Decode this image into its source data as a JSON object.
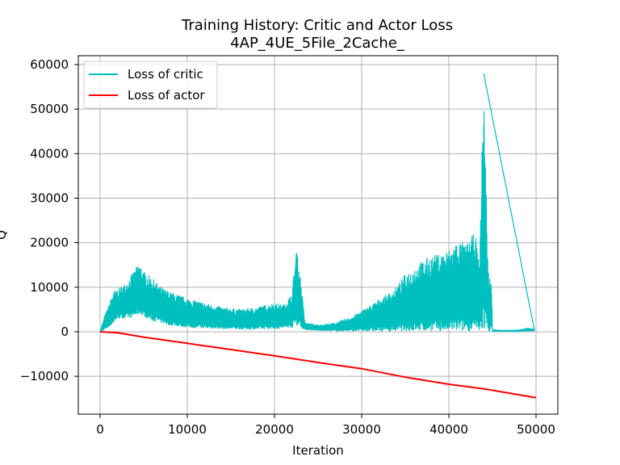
{
  "chart_data": {
    "type": "line",
    "title": "Training History: Critic and Actor Loss",
    "subtitle": "4AP_4UE_5File_2Cache_",
    "xlabel": "Iteration",
    "ylabel": "Q",
    "xlim": [
      -2500,
      52500
    ],
    "ylim": [
      -18500,
      62000
    ],
    "xticks": [
      0,
      10000,
      20000,
      30000,
      40000,
      50000
    ],
    "yticks": [
      -10000,
      0,
      10000,
      20000,
      30000,
      40000,
      50000,
      60000
    ],
    "grid": true,
    "legend_position": "top-left",
    "series": [
      {
        "name": "Loss of critic",
        "color": "#00bfbf",
        "envelope": {
          "x": [
            0,
            500,
            1000,
            1500,
            2000,
            3000,
            4000,
            4500,
            5000,
            6000,
            7000,
            8000,
            10000,
            12000,
            14000,
            16000,
            18000,
            20000,
            21000,
            22000,
            22500,
            23000,
            23500,
            25000,
            27000,
            29000,
            31000,
            33000,
            34000,
            35000,
            36000,
            37000,
            38000,
            39000,
            40000,
            41000,
            42000,
            43000,
            43500,
            44000,
            44500,
            44900,
            45000,
            46000,
            48000,
            49000,
            49800
          ],
          "upper": [
            100,
            3500,
            6000,
            9000,
            9500,
            11000,
            14000,
            15500,
            13500,
            12000,
            10000,
            9000,
            7500,
            6500,
            5500,
            5000,
            5500,
            6500,
            6000,
            8500,
            19000,
            12000,
            2000,
            1500,
            2000,
            3500,
            6000,
            8500,
            10000,
            13000,
            14500,
            16000,
            17000,
            17500,
            18500,
            20500,
            19500,
            22500,
            15000,
            58000,
            14000,
            11000,
            500,
            300,
            400,
            800,
            600
          ],
          "lower": [
            0,
            500,
            1000,
            2000,
            3000,
            3000,
            3500,
            4000,
            3500,
            2500,
            2000,
            1500,
            1000,
            800,
            700,
            600,
            600,
            700,
            800,
            1000,
            1500,
            1000,
            500,
            300,
            200,
            200,
            200,
            200,
            200,
            200,
            200,
            200,
            200,
            200,
            200,
            200,
            200,
            200,
            200,
            200,
            200,
            200,
            100,
            100,
            100,
            200,
            200
          ]
        }
      },
      {
        "name": "Loss of actor",
        "color": "#ff0000",
        "x": [
          0,
          2000,
          5000,
          10000,
          15000,
          20000,
          25000,
          30000,
          35000,
          40000,
          44000,
          50000
        ],
        "y": [
          0,
          -200,
          -1200,
          -2600,
          -4000,
          -5400,
          -6900,
          -8300,
          -10200,
          -11800,
          -12800,
          -14800
        ]
      }
    ]
  }
}
